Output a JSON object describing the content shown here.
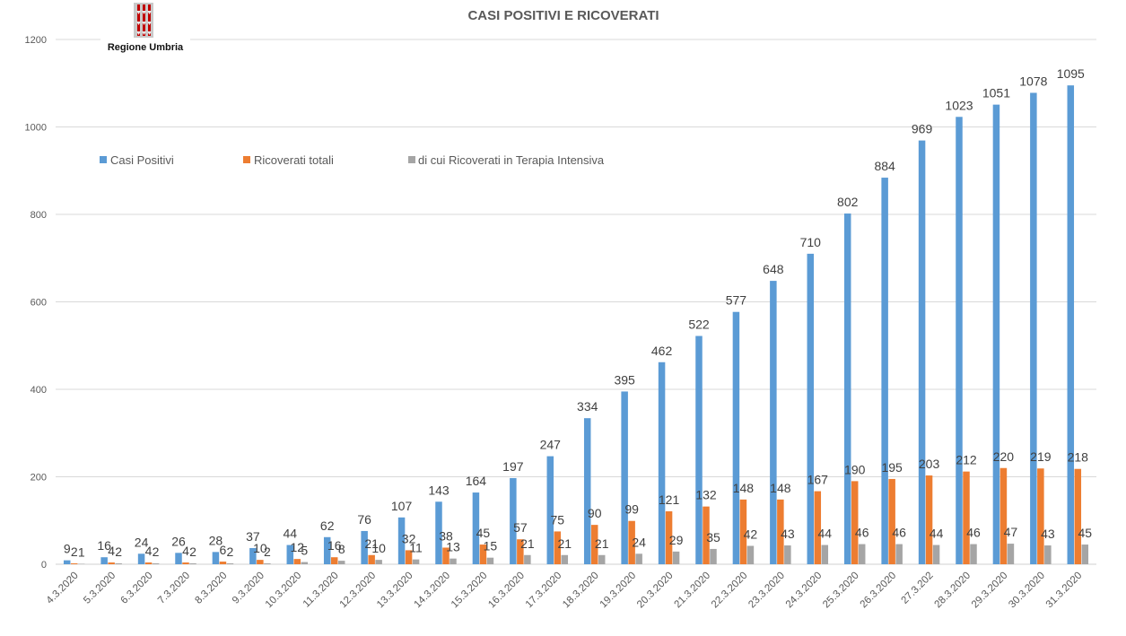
{
  "chart_data": {
    "type": "bar",
    "title": "CASI POSITIVI E RICOVERATI",
    "xlabel": "",
    "ylabel": "",
    "ylim": [
      0,
      1200
    ],
    "yticks": [
      0,
      200,
      400,
      600,
      800,
      1000,
      1200
    ],
    "grid": true,
    "legend_position": "top-left",
    "categories": [
      "4.3.2020",
      "5.3.2020",
      "6.3.2020",
      "7.3.2020",
      "8.3.2020",
      "9.3.2020",
      "10.3.2020",
      "11.3.2020",
      "12.3.2020",
      "13.3.2020",
      "14.3.2020",
      "15.3.2020",
      "16.3.2020",
      "17.3.2020",
      "18.3.2020",
      "19.3.2020",
      "20.3.2020",
      "21.3.2020",
      "22.3.2020",
      "23.3.2020",
      "24.3.2020",
      "25.3.2020",
      "26.3.2020",
      "27.3.202",
      "28.3.2020",
      "29.3.2020",
      "30.3.2020",
      "31.3.2020"
    ],
    "series": [
      {
        "name": "Casi Positivi",
        "color": "#5b9bd5",
        "values": [
          9,
          16,
          24,
          26,
          28,
          37,
          44,
          62,
          76,
          107,
          143,
          164,
          197,
          247,
          334,
          395,
          462,
          522,
          577,
          648,
          710,
          802,
          884,
          969,
          1023,
          1051,
          1078,
          1095
        ]
      },
      {
        "name": "Ricoverati totali",
        "color": "#ed7d31",
        "values": [
          2,
          4,
          4,
          4,
          6,
          10,
          12,
          16,
          21,
          32,
          38,
          45,
          57,
          75,
          90,
          99,
          121,
          132,
          148,
          148,
          167,
          190,
          195,
          203,
          212,
          220,
          219,
          218
        ]
      },
      {
        "name": "di cui Ricoverati in Terapia Intensiva",
        "color": "#a5a5a5",
        "values": [
          1,
          2,
          2,
          2,
          2,
          2,
          5,
          8,
          10,
          11,
          13,
          15,
          21,
          21,
          21,
          24,
          29,
          35,
          42,
          43,
          44,
          46,
          46,
          44,
          46,
          47,
          43,
          45
        ]
      }
    ]
  },
  "logo": {
    "text": "Regione Umbria",
    "icon": "umbria-candles-icon",
    "color": "#c00000"
  }
}
